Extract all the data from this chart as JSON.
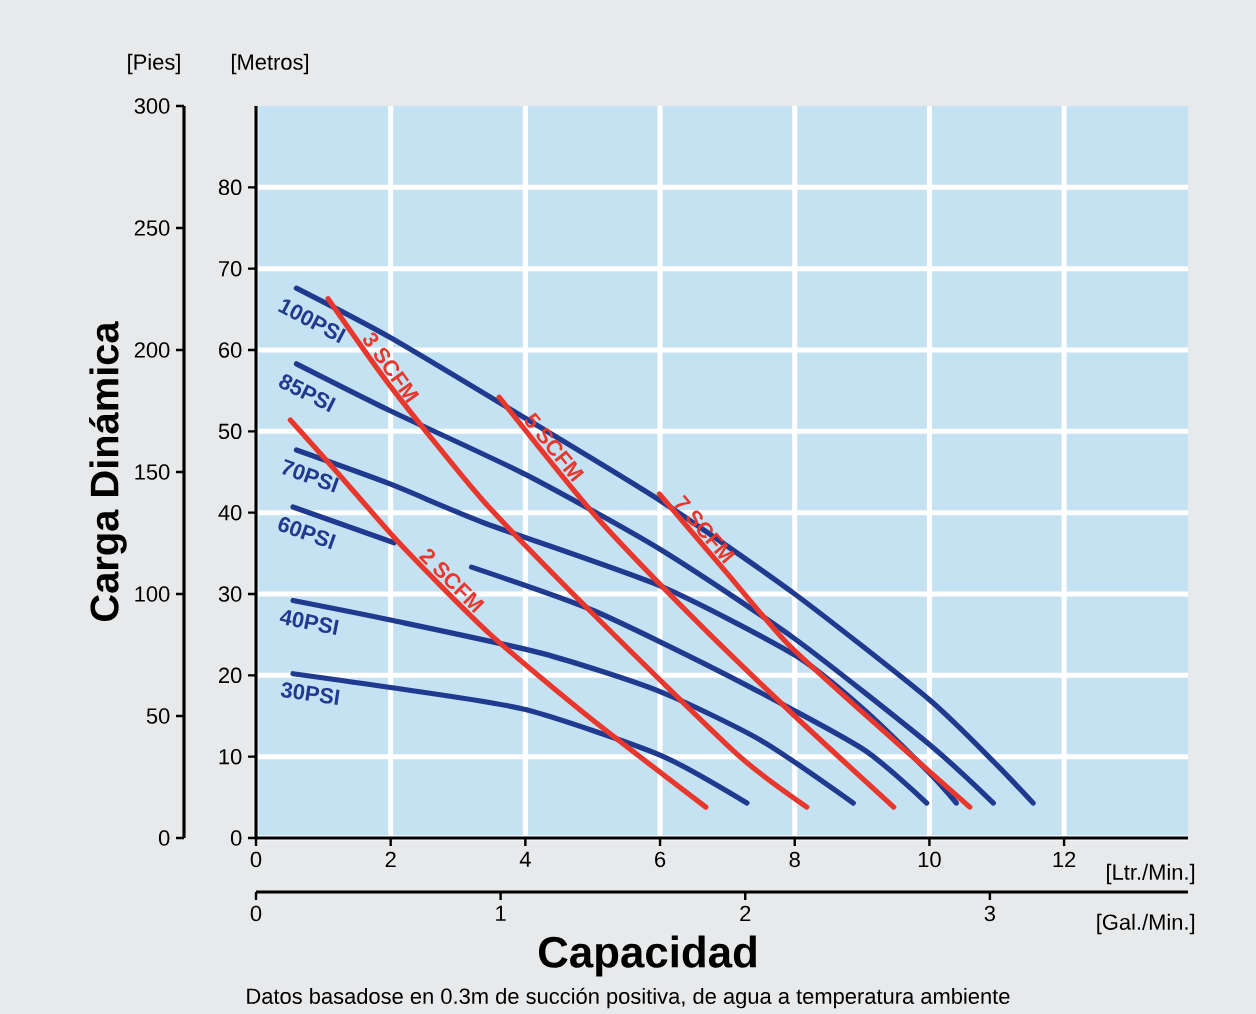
{
  "chart_data": {
    "type": "line",
    "xlabel": "Capacidad",
    "ylabel": "Carga Dinámica",
    "annotations": [
      "[Pies]",
      "[Metros]",
      "[Ltr./Min.]",
      "[Gal./Min.]",
      "Datos basadose en 0.3m de succión positiva, de agua a temperatura ambiente"
    ],
    "xlim": [
      0,
      13.84
    ],
    "xticks": [
      0,
      2,
      4,
      6,
      8,
      10,
      12
    ],
    "ylim": [
      0,
      300
    ],
    "yticks": [
      0,
      50,
      100,
      150,
      200,
      250,
      300
    ],
    "y2lim": [
      0,
      90
    ],
    "y2ticks": [
      0,
      10,
      20,
      30,
      40,
      50,
      60,
      70,
      80
    ],
    "x2lim": [
      0,
      3.81
    ],
    "x2ticks": [
      0,
      1,
      2,
      3
    ],
    "grid": true,
    "marker": "none",
    "line_style": "solid",
    "series": [
      {
        "name": "100PSI",
        "axis": "y2",
        "color": "#1f3a8f",
        "x": [
          0.6,
          2,
          4,
          6,
          8,
          10,
          11,
          11.54
        ],
        "values": [
          67.6,
          61.5,
          51.6,
          41.5,
          30,
          17,
          9,
          4.3
        ]
      },
      {
        "name": "85PSI",
        "axis": "y2",
        "color": "#1f3a8f",
        "x": [
          0.6,
          2,
          4,
          6,
          8,
          10,
          10.95
        ],
        "values": [
          58.3,
          52.5,
          44.7,
          35.5,
          24.5,
          11.5,
          4.3
        ]
      },
      {
        "name": "70PSI",
        "axis": "y2",
        "color": "#1f3a8f",
        "x": [
          0.6,
          2,
          3.4,
          6,
          8,
          9,
          10,
          10.4
        ],
        "values": [
          47.7,
          43.5,
          38.7,
          31,
          22.5,
          16,
          8,
          4.3
        ]
      },
      {
        "name": "60PSI",
        "axis": "y2",
        "color": "#1f3a8f",
        "x": [
          0.55,
          2.05,
          null,
          3.2,
          5,
          7,
          9,
          9.96
        ],
        "values": [
          40.7,
          36.3,
          null,
          33.3,
          28,
          20,
          11,
          4.3
        ]
      },
      {
        "name": "40PSI",
        "axis": "y2",
        "color": "#1f3a8f",
        "x": [
          0.55,
          2,
          4.25,
          6,
          7.5,
          8.87
        ],
        "values": [
          29.2,
          26.8,
          22.7,
          18,
          12,
          4.3
        ]
      },
      {
        "name": "30PSI",
        "axis": "y2",
        "color": "#1f3a8f",
        "x": [
          0.55,
          2,
          4,
          6,
          7.29
        ],
        "values": [
          20.2,
          18.5,
          15.8,
          10.2,
          4.3
        ]
      },
      {
        "name": "2 SCFM",
        "axis": "y2",
        "color": "#e8372c",
        "x": [
          0.51,
          1.2,
          2.18,
          3.47,
          5,
          6.68
        ],
        "values": [
          51.4,
          45,
          35.8,
          25.1,
          14.5,
          3.8
        ]
      },
      {
        "name": "3 SCFM",
        "axis": "y2",
        "color": "#e8372c",
        "x": [
          1.07,
          2,
          3.37,
          5,
          7.13,
          8.18
        ],
        "values": [
          66.3,
          55.5,
          41.5,
          27.6,
          10.4,
          3.8
        ]
      },
      {
        "name": "5 SCFM",
        "axis": "y2",
        "color": "#e8372c",
        "x": [
          3.61,
          5,
          6.5,
          8,
          9.47
        ],
        "values": [
          54.2,
          40,
          27,
          15,
          3.8
        ]
      },
      {
        "name": "7 SCFM",
        "axis": "y2",
        "color": "#e8372c",
        "x": [
          5.99,
          7,
          7.88,
          9,
          10.6
        ],
        "values": [
          42.3,
          32.5,
          24,
          15.5,
          3.8
        ]
      }
    ]
  }
}
